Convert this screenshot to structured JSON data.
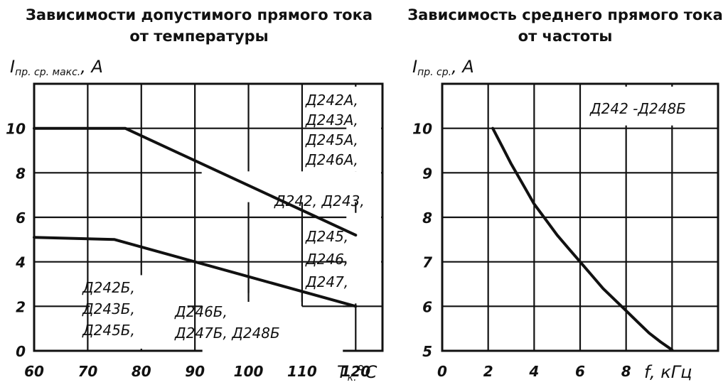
{
  "chart_data": [
    {
      "type": "line",
      "title": "Зависимости допустимого прямого тока от температуры",
      "ylabel_main": "I",
      "ylabel_sub": "пр. ср. макс.",
      "ylabel_unit": ", A",
      "xlabel_main": "T",
      "xlabel_sub": "к.",
      "xlabel_unit": "°C",
      "xlim": [
        60,
        125
      ],
      "ylim": [
        0,
        12
      ],
      "xticks": [
        60,
        70,
        80,
        90,
        100,
        110,
        120
      ],
      "yticks": [
        0,
        2,
        4,
        6,
        8,
        10
      ],
      "grid": true,
      "series": [
        {
          "x": [
            60,
            75,
            120
          ],
          "y": [
            5.1,
            5.0,
            2.0
          ]
        },
        {
          "x": [
            60,
            77,
            120
          ],
          "y": [
            10.0,
            10.0,
            5.2
          ]
        }
      ],
      "annotations": [
        {
          "lines": [
            "Д242А,",
            "Д243А,",
            "Д245А,",
            "Д246А,"
          ]
        },
        {
          "lines": [
            "Д242, Д243,"
          ]
        },
        {
          "lines": [
            "Д245,",
            "Д246,",
            "Д247,"
          ]
        },
        {
          "lines": [
            "Д242Б,",
            "Д243Б,",
            "Д245Б,"
          ]
        },
        {
          "lines": [
            "Д246Б,",
            "Д247Б, Д248Б"
          ]
        }
      ]
    },
    {
      "type": "line",
      "title": "Зависимость среднего прямого тока от частоты",
      "ylabel_main": "I",
      "ylabel_sub": "пр. ср.",
      "ylabel_unit": ", A",
      "xlabel": "f, кГц",
      "xlim": [
        0,
        12
      ],
      "ylim": [
        5,
        11
      ],
      "xticks": [
        0,
        2,
        4,
        6,
        8
      ],
      "yticks": [
        5,
        6,
        7,
        8,
        9,
        10
      ],
      "grid": true,
      "series": [
        {
          "x": [
            2.2,
            2.6,
            3.0,
            3.5,
            4.0,
            4.5,
            5.0,
            5.5,
            6.0,
            6.5,
            7.0,
            7.5,
            8.0,
            8.5,
            9.0,
            9.5,
            10.0
          ],
          "y": [
            10.0,
            9.6,
            9.2,
            8.75,
            8.3,
            7.95,
            7.6,
            7.3,
            7.0,
            6.7,
            6.4,
            6.15,
            5.9,
            5.65,
            5.4,
            5.2,
            5.02
          ]
        }
      ],
      "annotations": [
        {
          "lines": [
            "Д242 -Д248Б"
          ]
        }
      ]
    }
  ]
}
